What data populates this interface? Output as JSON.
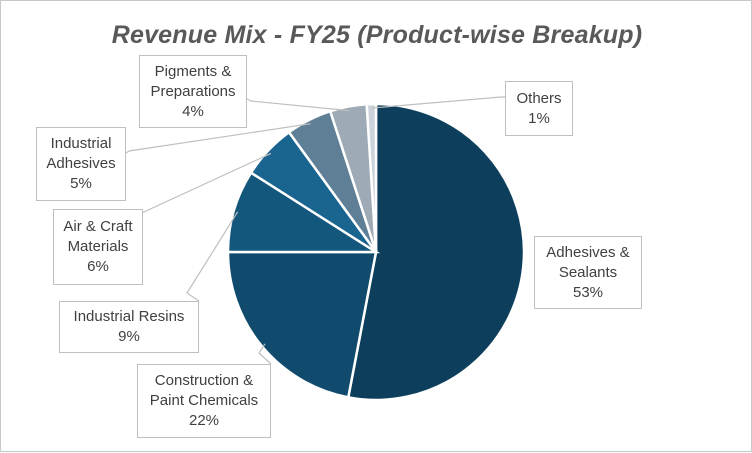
{
  "chart_data": {
    "type": "pie",
    "title": "Revenue Mix - FY25 (Product-wise Breakup)",
    "slices": [
      {
        "name": "Adhesives & Sealants",
        "value": 53,
        "label": "53%",
        "color": "#0d3f5c",
        "name_lines": [
          "Adhesives &",
          "Sealants"
        ]
      },
      {
        "name": "Construction & Paint Chemicals",
        "value": 22,
        "label": "22%",
        "color": "#104b6d",
        "name_lines": [
          "Construction &",
          "Paint Chemicals"
        ]
      },
      {
        "name": "Industrial Resins",
        "value": 9,
        "label": "9%",
        "color": "#14577c",
        "name_lines": [
          "Industrial Resins"
        ]
      },
      {
        "name": "Air & Craft Materials",
        "value": 6,
        "label": "6%",
        "color": "#1a6490",
        "name_lines": [
          "Air & Craft",
          "Materials"
        ]
      },
      {
        "name": "Industrial Adhesives",
        "value": 5,
        "label": "5%",
        "color": "#5f7f97",
        "name_lines": [
          "Industrial",
          "Adhesives"
        ]
      },
      {
        "name": "Pigments & Preparations",
        "value": 4,
        "label": "4%",
        "color": "#9eaab5",
        "name_lines": [
          "Pigments &",
          "Preparations"
        ]
      },
      {
        "name": "Others",
        "value": 1,
        "label": "1%",
        "color": "#ccd3da",
        "name_lines": [
          "Others"
        ]
      }
    ],
    "legend": "none",
    "data_labels": "outside with leader lines"
  }
}
